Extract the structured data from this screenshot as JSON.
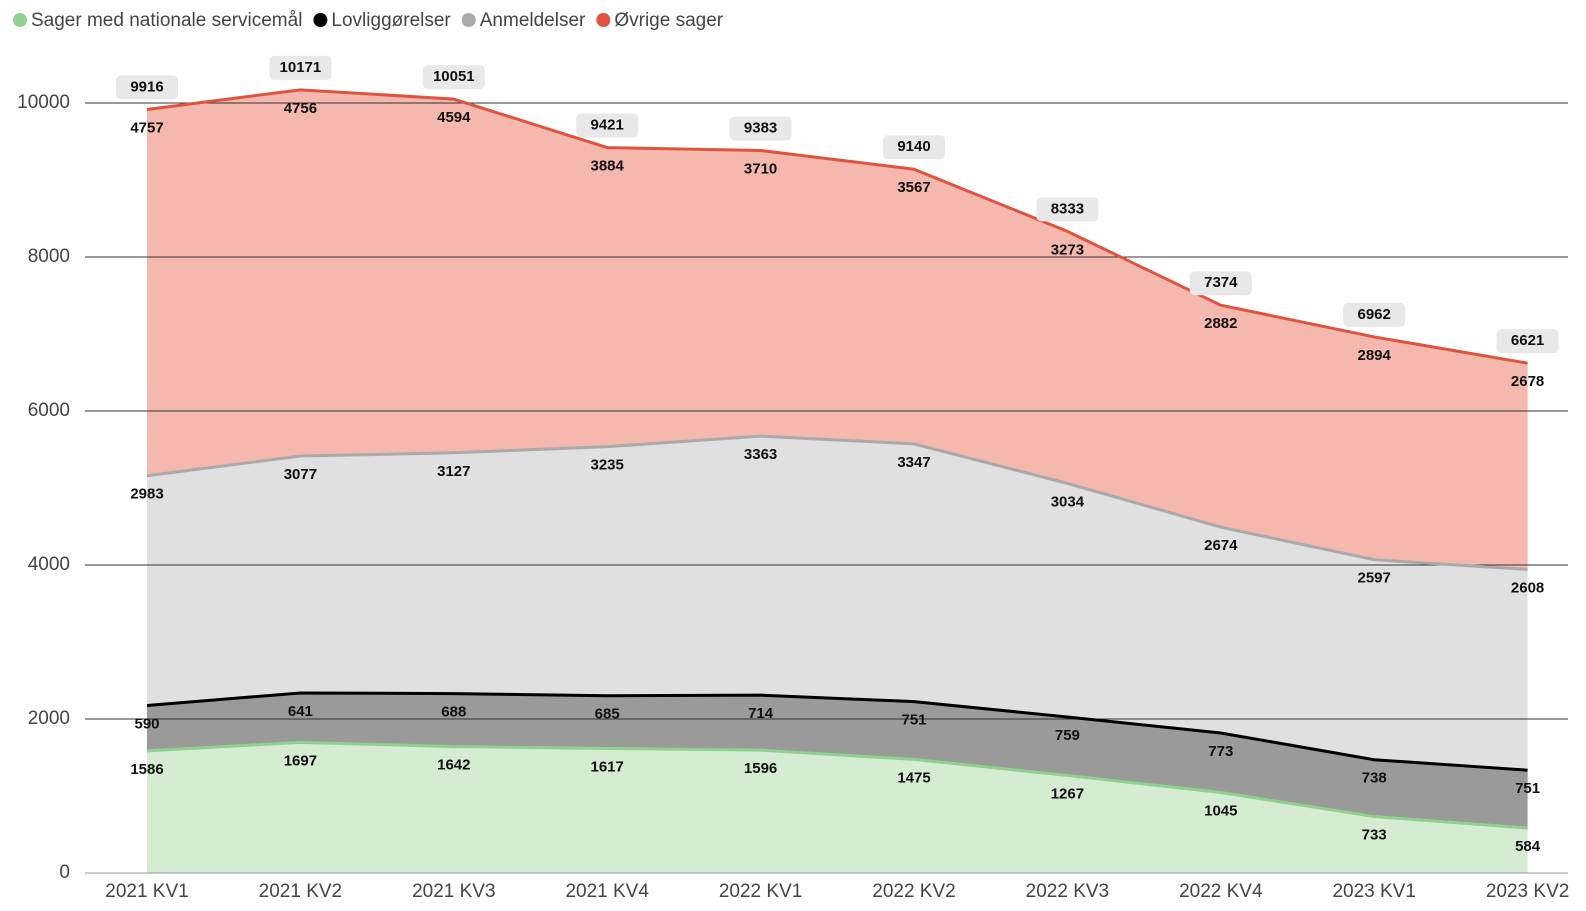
{
  "chart_data": {
    "type": "stacked_area",
    "categories": [
      "2021 KV1",
      "2021 KV2",
      "2021 KV3",
      "2021 KV4",
      "2022 KV1",
      "2022 KV2",
      "2022 KV3",
      "2022 KV4",
      "2023 KV1",
      "2023 KV2"
    ],
    "series": [
      {
        "name": "Sager med nationale servicemål",
        "color": "#8fd18f",
        "fill": "#d5ebd2",
        "values": [
          1586,
          1697,
          1642,
          1617,
          1596,
          1475,
          1267,
          1045,
          733,
          584
        ]
      },
      {
        "name": "Lovliggørelser",
        "color": "#000000",
        "fill": "#9a9a9a",
        "values": [
          590,
          641,
          688,
          685,
          714,
          751,
          759,
          773,
          738,
          751
        ]
      },
      {
        "name": "Anmeldelser",
        "color": "#aaaaaa",
        "fill": "#e0e0e0",
        "values": [
          2983,
          3077,
          3127,
          3235,
          3363,
          3347,
          3034,
          2674,
          2597,
          2608
        ]
      },
      {
        "name": "Øvrige sager",
        "color": "#e0533f",
        "fill": "#f4b8ae",
        "values": [
          4757,
          4756,
          4594,
          3884,
          3710,
          3567,
          3273,
          2882,
          2894,
          2678
        ]
      }
    ],
    "totals": [
      9916,
      10171,
      10051,
      9421,
      9383,
      9140,
      8333,
      7374,
      6962,
      6621
    ],
    "ylim": [
      0,
      10500
    ],
    "yticks": [
      0,
      2000,
      4000,
      6000,
      8000,
      10000
    ],
    "grid": true,
    "legend": "top-left"
  }
}
